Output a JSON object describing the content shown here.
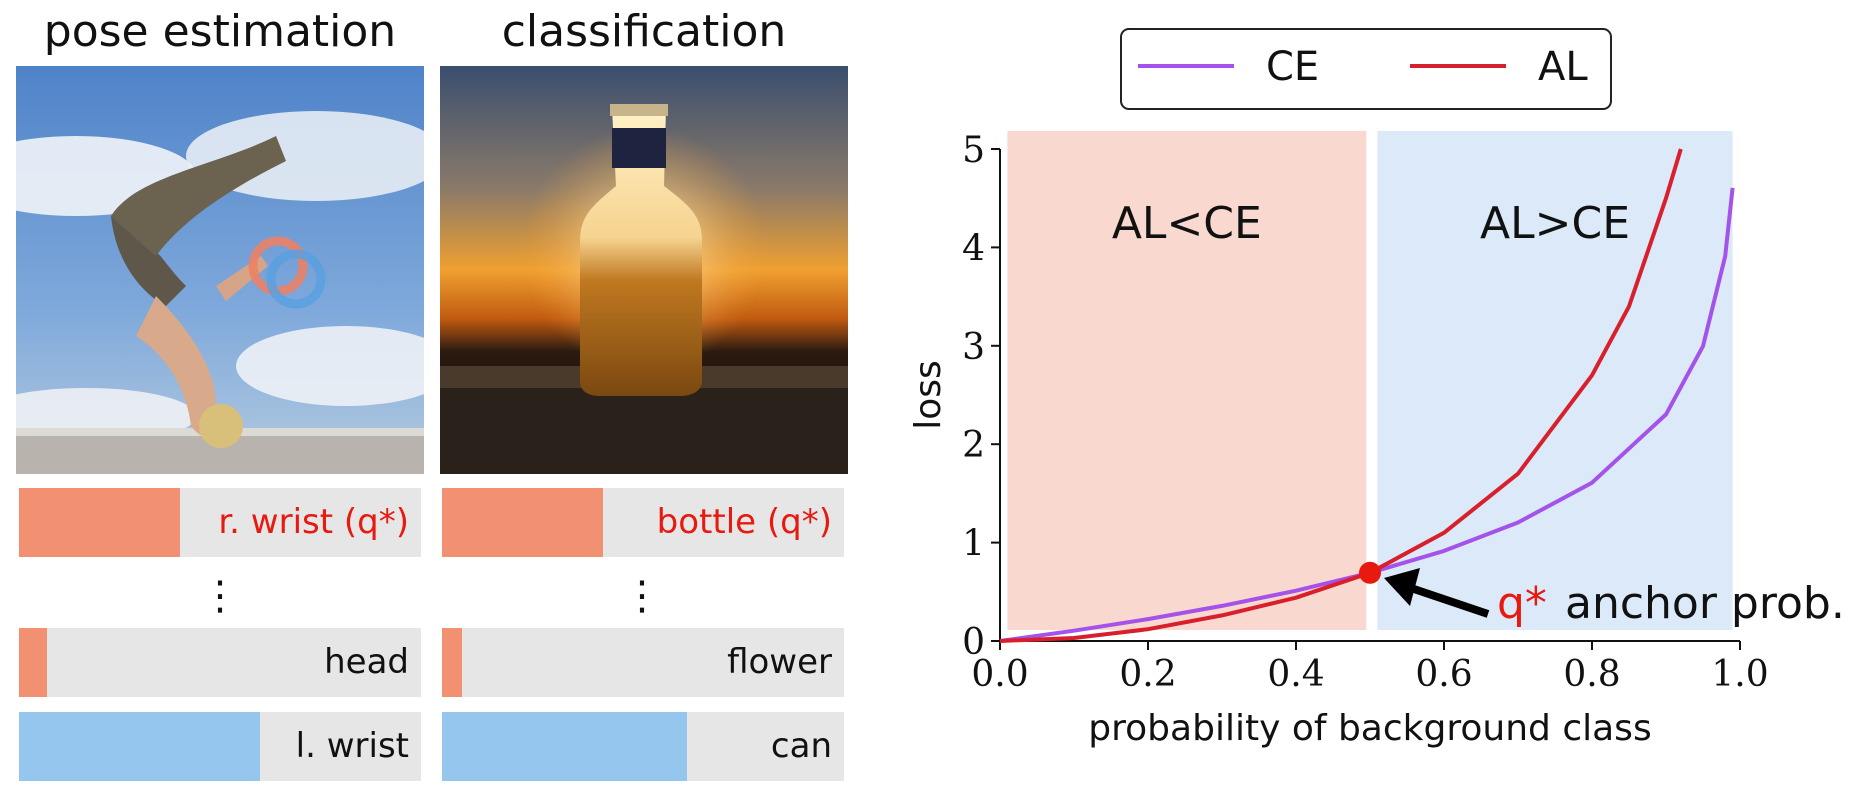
{
  "left_panels": {
    "pose": {
      "title": "pose estimation",
      "bars": [
        {
          "label": "r. wrist (q*)",
          "value": 0.4,
          "kind": "target"
        },
        {
          "label": "head",
          "value": 0.07,
          "kind": "target"
        },
        {
          "label": "l. wrist",
          "value": 0.6,
          "kind": "other"
        }
      ]
    },
    "classification": {
      "title": "classification",
      "bars": [
        {
          "label": "bottle (q*)",
          "value": 0.4,
          "kind": "target"
        },
        {
          "label": "flower",
          "value": 0.05,
          "kind": "target"
        },
        {
          "label": "can",
          "value": 0.61,
          "kind": "other"
        }
      ]
    },
    "ellipsis": "⋮"
  },
  "colors": {
    "target_bar": "#f29072",
    "other_bar": "#94c6ee",
    "bar_bg": "#e6e6e6",
    "q_star_label": "#e8190f",
    "ce_line": "#a452ea",
    "al_line": "#d8202c",
    "region_left": "#f9d8cf",
    "region_right": "#dbe9f8"
  },
  "chart_data": {
    "type": "line",
    "xlabel": "probability of background class",
    "ylabel": "loss",
    "xlim": [
      0.0,
      1.0
    ],
    "ylim": [
      0,
      5
    ],
    "xticks": [
      "0.0",
      "0.2",
      "0.4",
      "0.6",
      "0.8",
      "1.0"
    ],
    "yticks": [
      "0",
      "1",
      "2",
      "3",
      "4",
      "5"
    ],
    "legend": {
      "position": "top",
      "entries": [
        "CE",
        "AL"
      ]
    },
    "series": [
      {
        "name": "CE",
        "x": [
          0.0,
          0.1,
          0.2,
          0.3,
          0.4,
          0.5,
          0.6,
          0.7,
          0.8,
          0.9,
          0.95,
          0.98,
          0.99
        ],
        "y": [
          0.0,
          0.105,
          0.223,
          0.357,
          0.511,
          0.693,
          0.916,
          1.204,
          1.609,
          2.303,
          2.996,
          3.912,
          4.605
        ]
      },
      {
        "name": "AL",
        "x": [
          0.0,
          0.1,
          0.2,
          0.3,
          0.4,
          0.5,
          0.6,
          0.7,
          0.8,
          0.85,
          0.9,
          0.92
        ],
        "y": [
          0.0,
          0.03,
          0.12,
          0.26,
          0.44,
          0.693,
          1.1,
          1.7,
          2.7,
          3.4,
          4.5,
          5.0
        ]
      }
    ],
    "regions": [
      {
        "label": "AL<CE",
        "x_range": [
          0.01,
          0.495
        ]
      },
      {
        "label": "AL>CE",
        "x_range": [
          0.51,
          0.99
        ]
      }
    ],
    "anchor_point": {
      "x": 0.5,
      "y": 0.693
    },
    "annotation": {
      "q_label": "q*",
      "text": "anchor prob."
    }
  }
}
